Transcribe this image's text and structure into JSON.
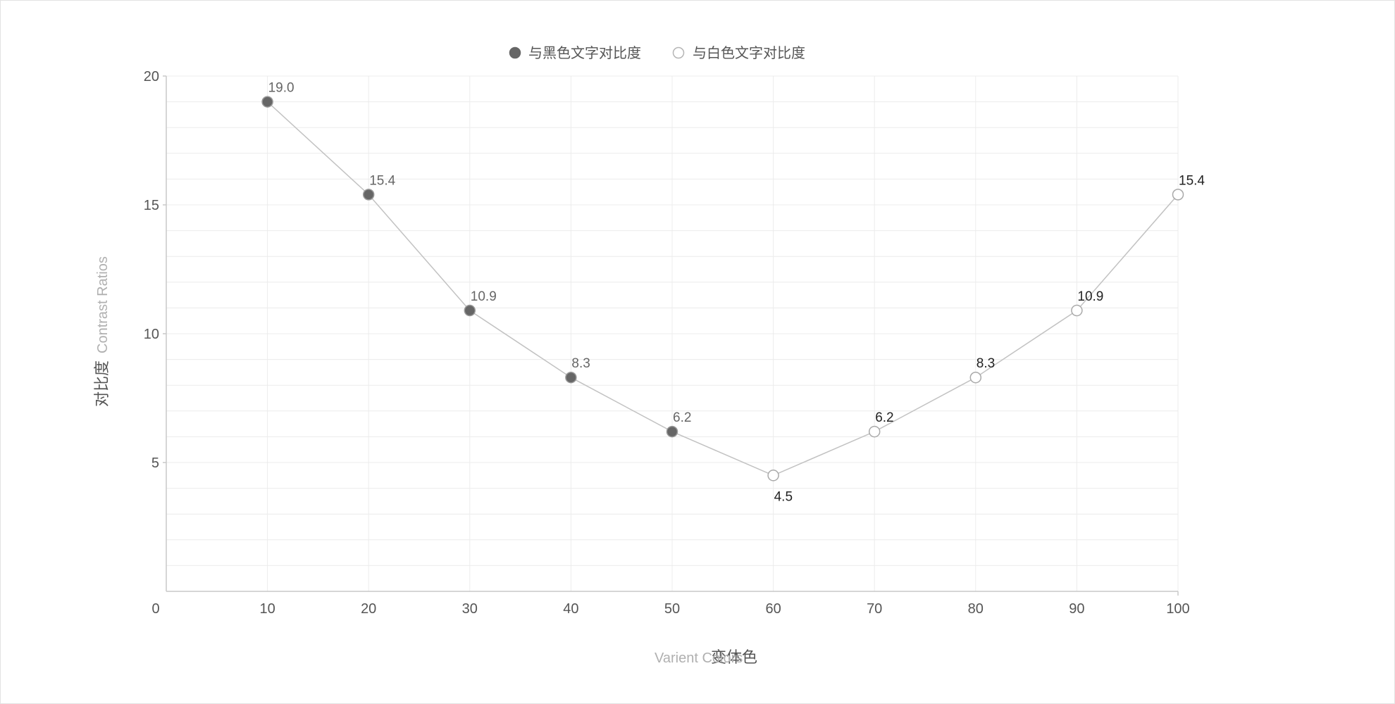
{
  "chart_data": {
    "type": "line",
    "x": [
      10,
      20,
      30,
      40,
      50,
      60,
      70,
      80,
      90,
      100
    ],
    "values": [
      19.0,
      15.4,
      10.9,
      8.3,
      6.2,
      4.5,
      6.2,
      8.3,
      10.9,
      15.4
    ],
    "data_labels": [
      "19.0",
      "15.4",
      "10.9",
      "8.3",
      "6.2",
      "4.5",
      "6.2",
      "8.3",
      "10.9",
      "15.4"
    ],
    "series": [
      {
        "name": "与黑色文字对比度",
        "x": [
          10,
          20,
          30,
          40,
          50
        ],
        "values": [
          19.0,
          15.4,
          10.9,
          8.3,
          6.2
        ],
        "marker": "filled",
        "color": "#666666"
      },
      {
        "name": "与白色文字对比度",
        "x": [
          60,
          70,
          80,
          90,
          100
        ],
        "values": [
          4.5,
          6.2,
          8.3,
          10.9,
          15.4
        ],
        "marker": "hollow",
        "color": "#ffffff"
      }
    ],
    "xlabel": {
      "cn": "变体色",
      "en": "Varient Colors"
    },
    "ylabel": {
      "cn": "对比度",
      "en": "Contrast Ratios"
    },
    "xlim": [
      0,
      100
    ],
    "ylim": [
      0,
      20
    ],
    "x_ticks": [
      "0",
      "10",
      "20",
      "30",
      "40",
      "50",
      "60",
      "70",
      "80",
      "90",
      "100"
    ],
    "y_ticks": [
      "5",
      "10",
      "15",
      "20"
    ],
    "y_minor_step": 1,
    "grid": true,
    "legend_position": "top-center",
    "colors": {
      "line": "#c2c2c2",
      "grid": "#ececec",
      "axis": "#c8c8c8",
      "marker_fill_dark": "#666666",
      "marker_stroke": "#9a9a9a",
      "marker_fill_light": "#ffffff",
      "label_dark": "#666666",
      "label_light": "#222222"
    }
  }
}
